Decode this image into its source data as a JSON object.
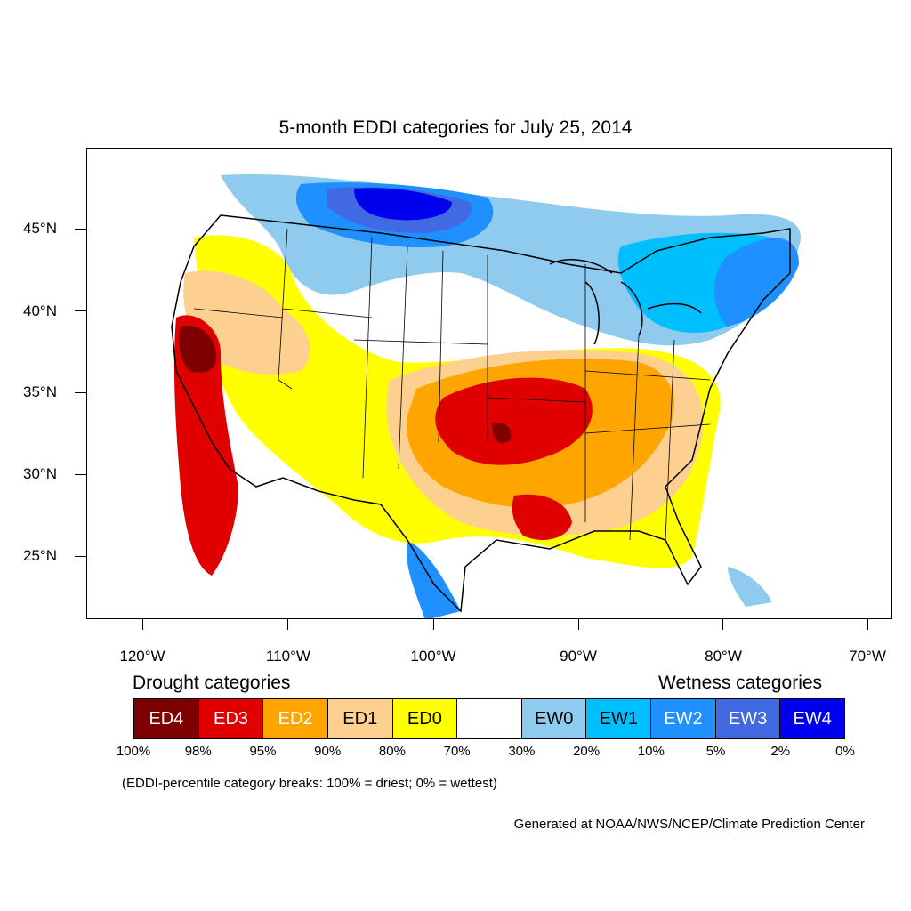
{
  "title": "5-month EDDI categories for July 25, 2014",
  "axes": {
    "latitude_labels": [
      "45°N",
      "40°N",
      "35°N",
      "30°N",
      "25°N"
    ],
    "longitude_labels": [
      "120°W",
      "110°W",
      "100°W",
      "90°W",
      "80°W",
      "70°W"
    ]
  },
  "legend": {
    "drought_heading": "Drought categories",
    "wetness_heading": "Wetness categories",
    "categories": [
      {
        "label": "ED4",
        "color": "#7f0000",
        "text_color": "#ffffff"
      },
      {
        "label": "ED3",
        "color": "#e00000",
        "text_color": "#ffffff"
      },
      {
        "label": "ED2",
        "color": "#ffa500",
        "text_color": "#ffffff"
      },
      {
        "label": "ED1",
        "color": "#fdd090",
        "text_color": "#000000"
      },
      {
        "label": "ED0",
        "color": "#ffff00",
        "text_color": "#000000"
      },
      {
        "label": "",
        "color": "#ffffff",
        "text_color": "#000000"
      },
      {
        "label": "EW0",
        "color": "#8ecbee",
        "text_color": "#000000"
      },
      {
        "label": "EW1",
        "color": "#00bfff",
        "text_color": "#000000"
      },
      {
        "label": "EW2",
        "color": "#1e90ff",
        "text_color": "#ffffff"
      },
      {
        "label": "EW3",
        "color": "#4169e1",
        "text_color": "#ffffff"
      },
      {
        "label": "EW4",
        "color": "#0000ee",
        "text_color": "#ffffff"
      }
    ],
    "percentile_breaks": [
      "100%",
      "98%",
      "95%",
      "90%",
      "80%",
      "70%",
      "30%",
      "20%",
      "10%",
      "5%",
      "2%",
      "0%"
    ],
    "note": "(EDDI-percentile category breaks: 100% = driest; 0% = wettest)"
  },
  "credit": "Generated at NOAA/NWS/NCEP/Climate Prediction Center"
}
